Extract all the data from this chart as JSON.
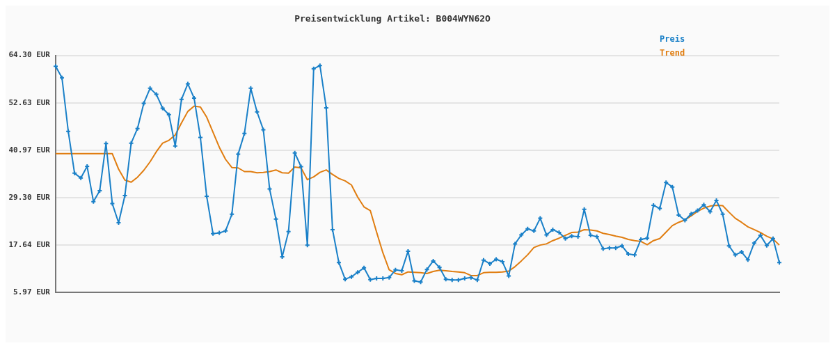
{
  "chart_data": {
    "type": "line",
    "title": "Preisentwicklung Artikel: B004WYN62O",
    "categories": [
      null,
      null,
      null,
      null,
      null,
      null,
      null,
      null,
      null,
      null,
      null,
      null,
      null,
      null,
      null,
      null,
      null,
      null,
      null,
      null,
      null,
      null,
      null,
      null,
      null,
      null,
      null,
      null,
      null,
      null,
      null,
      null,
      null,
      null,
      null,
      null,
      null,
      null,
      null,
      null,
      null,
      null,
      null,
      null,
      null,
      null,
      null,
      null,
      null,
      null,
      null,
      null,
      null,
      null,
      null,
      null,
      null,
      null,
      null,
      null,
      null,
      null,
      null,
      null,
      null,
      null,
      null,
      null,
      null,
      null,
      null,
      null,
      null,
      null,
      null,
      null,
      null,
      null,
      null,
      null,
      null,
      null,
      null,
      null,
      null,
      null,
      null,
      null,
      null,
      null,
      null,
      null,
      null,
      null,
      null,
      null,
      null,
      null,
      null,
      null,
      null,
      null,
      null,
      null,
      null,
      null,
      null,
      null,
      null,
      null,
      null,
      null,
      null,
      null,
      null,
      null
    ],
    "series": [
      {
        "name": "Preis",
        "color": "#1a80c8",
        "marker": "cross",
        "values": [
          61.6,
          58.8,
          45.6,
          35.3,
          34.1,
          37.0,
          28.3,
          31.0,
          42.6,
          27.8,
          23.1,
          29.8,
          42.7,
          46.3,
          52.5,
          56.2,
          54.7,
          51.3,
          49.7,
          42.0,
          53.5,
          57.3,
          53.8,
          44.1,
          29.6,
          20.4,
          20.6,
          21.1,
          25.2,
          40.0,
          45.1,
          56.2,
          50.4,
          46.0,
          31.4,
          24.0,
          14.7,
          20.9,
          40.3,
          36.9,
          17.6,
          61.0,
          61.8,
          51.4,
          21.4,
          13.3,
          9.2,
          9.8,
          10.9,
          12.0,
          9.1,
          9.4,
          9.4,
          9.6,
          11.5,
          11.3,
          16.1,
          8.8,
          8.5,
          11.6,
          13.7,
          12.1,
          9.2,
          9.0,
          9.0,
          9.4,
          9.6,
          9.0,
          13.9,
          13.0,
          14.1,
          13.5,
          10.0,
          17.9,
          20.1,
          21.6,
          21.1,
          24.2,
          20.1,
          21.4,
          20.7,
          19.2,
          19.8,
          19.7,
          26.4,
          20.0,
          19.7,
          16.7,
          16.9,
          16.9,
          17.4,
          15.4,
          15.2,
          19.0,
          19.3,
          27.4,
          26.6,
          33.0,
          31.9,
          25.0,
          23.7,
          25.3,
          26.1,
          27.5,
          25.8,
          28.6,
          25.2,
          17.4,
          15.2,
          15.9,
          14.0,
          18.1,
          20.0,
          17.5,
          19.2,
          13.3
        ]
      },
      {
        "name": "Trend",
        "color": "#e07d10",
        "marker": "none",
        "values": [
          40.1,
          40.1,
          40.1,
          40.1,
          40.1,
          40.1,
          40.1,
          40.1,
          40.1,
          40.1,
          36.3,
          33.6,
          33.1,
          34.3,
          36.0,
          38.1,
          40.6,
          42.7,
          43.4,
          44.7,
          47.7,
          50.5,
          51.8,
          51.6,
          49.1,
          45.4,
          41.7,
          38.7,
          36.7,
          36.6,
          35.7,
          35.7,
          35.4,
          35.5,
          35.7,
          36.1,
          35.4,
          35.3,
          36.8,
          36.6,
          33.7,
          34.4,
          35.5,
          36.1,
          35.0,
          34.0,
          33.4,
          32.4,
          29.4,
          27.0,
          26.1,
          20.8,
          15.7,
          11.5,
          10.6,
          10.3,
          11.0,
          10.9,
          10.8,
          10.6,
          11.1,
          11.4,
          11.3,
          11.1,
          11.0,
          10.8,
          10.1,
          10.1,
          10.8,
          10.9,
          10.9,
          11.0,
          11.2,
          12.3,
          13.7,
          15.2,
          17.0,
          17.6,
          17.9,
          18.7,
          19.3,
          20.0,
          20.7,
          20.8,
          21.4,
          21.3,
          21.1,
          20.5,
          20.2,
          19.8,
          19.5,
          19.0,
          18.7,
          18.5,
          17.7,
          18.7,
          19.2,
          20.8,
          22.4,
          23.2,
          23.8,
          24.8,
          25.9,
          26.7,
          27.2,
          27.4,
          27.3,
          25.7,
          24.2,
          23.2,
          22.1,
          21.4,
          20.7,
          19.8,
          19.1,
          17.6
        ]
      }
    ],
    "ylim": [
      5.97,
      64.3
    ],
    "yticks": [
      {
        "value": 5.97,
        "label": "5.97 EUR"
      },
      {
        "value": 17.64,
        "label": "17.64 EUR"
      },
      {
        "value": 29.3,
        "label": "29.30 EUR"
      },
      {
        "value": 40.97,
        "label": "40.97 EUR"
      },
      {
        "value": 52.63,
        "label": "52.63 EUR"
      },
      {
        "value": 64.3,
        "label": "64.30 EUR"
      }
    ],
    "grid": "y",
    "legend": "top right",
    "tick_labels": "y",
    "line_style": "solid"
  }
}
